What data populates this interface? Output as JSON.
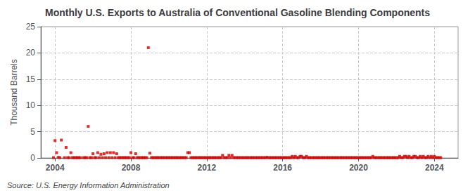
{
  "chart_data": {
    "type": "scatter",
    "title": "Monthly U.S. Exports to Australia of Conventional Gasoline Blending Components",
    "y_label": "Thousand Barrels",
    "annotations": [
      "Source: U.S. Energy Information Administration"
    ],
    "color": "#cc0000",
    "marker": "square",
    "grid": true,
    "xlim": [
      2003.25,
      2025.25
    ],
    "xticks": [
      2004,
      2008,
      2012,
      2016,
      2020,
      2024
    ],
    "ylim": [
      0,
      25
    ],
    "yticks": [
      0,
      5,
      10,
      15,
      20,
      25
    ],
    "x": [
      2003.917,
      2004.0,
      2004.083,
      2004.167,
      2004.25,
      2004.333,
      2004.5,
      2004.583,
      2004.667,
      2004.75,
      2004.833,
      2004.917,
      2005.0,
      2005.083,
      2005.167,
      2005.25,
      2005.333,
      2005.5,
      2005.583,
      2005.667,
      2005.75,
      2005.833,
      2005.917,
      2006.0,
      2006.083,
      2006.167,
      2006.25,
      2006.333,
      2006.417,
      2006.5,
      2006.583,
      2006.667,
      2006.75,
      2006.833,
      2006.917,
      2007.0,
      2007.083,
      2007.167,
      2007.25,
      2007.333,
      2007.417,
      2007.5,
      2007.583,
      2007.667,
      2007.75,
      2007.833,
      2007.917,
      2008.0,
      2008.083,
      2008.167,
      2008.25,
      2008.333,
      2008.417,
      2008.5,
      2008.583,
      2008.667,
      2008.75,
      2008.833,
      2008.917,
      2009.0,
      2009.083,
      2009.167,
      2009.25,
      2009.333,
      2009.417,
      2009.5,
      2009.583,
      2009.667,
      2009.75,
      2009.833,
      2009.917,
      2010.0,
      2010.083,
      2010.167,
      2010.25,
      2010.333,
      2010.417,
      2010.5,
      2010.583,
      2010.667,
      2010.75,
      2010.833,
      2010.917,
      2011.0,
      2011.083,
      2011.167,
      2011.25,
      2011.333,
      2011.417,
      2011.5,
      2011.583,
      2011.667,
      2011.75,
      2011.833,
      2011.917,
      2012.0,
      2012.083,
      2012.167,
      2012.25,
      2012.333,
      2012.417,
      2012.5,
      2012.583,
      2012.667,
      2012.75,
      2012.833,
      2012.917,
      2013.0,
      2013.083,
      2013.167,
      2013.25,
      2013.333,
      2013.417,
      2013.5,
      2013.583,
      2013.667,
      2013.75,
      2013.833,
      2013.917,
      2014.0,
      2014.083,
      2014.167,
      2014.25,
      2014.333,
      2014.417,
      2014.5,
      2014.583,
      2014.667,
      2014.75,
      2014.833,
      2014.917,
      2015.0,
      2015.083,
      2015.167,
      2015.25,
      2015.333,
      2015.417,
      2015.5,
      2015.583,
      2015.667,
      2015.75,
      2015.833,
      2015.917,
      2016.0,
      2016.083,
      2016.167,
      2016.25,
      2016.333,
      2016.417,
      2016.5,
      2016.583,
      2016.667,
      2016.75,
      2016.833,
      2016.917,
      2017.0,
      2017.083,
      2017.167,
      2017.25,
      2017.333,
      2017.417,
      2017.5,
      2017.583,
      2017.667,
      2017.75,
      2017.833,
      2017.917,
      2018.0,
      2018.083,
      2018.167,
      2018.25,
      2018.333,
      2018.417,
      2018.5,
      2018.583,
      2018.667,
      2018.75,
      2018.833,
      2018.917,
      2019.0,
      2019.083,
      2019.167,
      2019.25,
      2019.333,
      2019.417,
      2019.5,
      2019.583,
      2019.667,
      2019.75,
      2019.833,
      2019.917,
      2020.0,
      2020.083,
      2020.167,
      2020.25,
      2020.333,
      2020.417,
      2020.5,
      2020.583,
      2020.667,
      2020.75,
      2020.833,
      2020.917,
      2021.0,
      2021.083,
      2021.167,
      2021.25,
      2021.333,
      2021.417,
      2021.5,
      2021.583,
      2021.667,
      2021.75,
      2021.833,
      2021.917,
      2022.0,
      2022.083,
      2022.167,
      2022.25,
      2022.333,
      2022.417,
      2022.5,
      2022.583,
      2022.667,
      2022.75,
      2022.833,
      2022.917,
      2023.0,
      2023.083,
      2023.167,
      2023.25,
      2023.333,
      2023.417,
      2023.5,
      2023.583,
      2023.667,
      2023.75,
      2023.833,
      2023.917,
      2024.0,
      2024.083,
      2024.167,
      2024.25,
      2024.333
    ],
    "values": [
      0.05,
      3.3,
      1.0,
      0.1,
      0.05,
      3.4,
      0.05,
      2.0,
      0.05,
      0.05,
      1.0,
      0.05,
      0.05,
      0.05,
      0.05,
      0.05,
      0.05,
      0.05,
      0.05,
      0.05,
      6.0,
      0.05,
      0.05,
      0.8,
      0.05,
      0.05,
      1.0,
      0.05,
      0.7,
      0.05,
      0.8,
      0.05,
      1.0,
      0.05,
      1.0,
      0.05,
      1.0,
      0.05,
      0.8,
      0.05,
      0.05,
      0.05,
      0.05,
      0.05,
      0.05,
      0.05,
      0.05,
      1.0,
      0.05,
      0.05,
      0.8,
      0.05,
      0.05,
      0.05,
      0.05,
      0.05,
      0.05,
      0.05,
      21.0,
      0.9,
      0.05,
      0.05,
      0.05,
      0.05,
      0.05,
      0.05,
      0.05,
      0.05,
      0.05,
      0.05,
      0.05,
      0.05,
      0.05,
      0.05,
      0.05,
      0.05,
      0.05,
      0.05,
      0.05,
      0.05,
      0.05,
      0.05,
      0.05,
      1.0,
      1.0,
      0.05,
      0.05,
      0.05,
      0.05,
      0.05,
      0.05,
      0.05,
      0.05,
      0.05,
      0.05,
      0.05,
      0.05,
      0.05,
      0.05,
      0.05,
      0.05,
      0.05,
      0.05,
      0.05,
      0.05,
      0.5,
      0.05,
      0.05,
      0.05,
      0.5,
      0.05,
      0.5,
      0.05,
      0.05,
      0.05,
      0.05,
      0.05,
      0.05,
      0.05,
      0.05,
      0.05,
      0.05,
      0.05,
      0.05,
      0.05,
      0.05,
      0.05,
      0.05,
      0.05,
      0.05,
      0.05,
      0.05,
      0.05,
      0.1,
      0.05,
      0.05,
      0.05,
      0.05,
      0.05,
      0.05,
      0.05,
      0.05,
      0.05,
      0.05,
      0.05,
      0.05,
      0.05,
      0.05,
      0.05,
      0.3,
      0.05,
      0.3,
      0.05,
      0.05,
      0.3,
      0.3,
      0.05,
      0.05,
      0.3,
      0.05,
      0.05,
      0.05,
      0.05,
      0.05,
      0.05,
      0.05,
      0.05,
      0.05,
      0.05,
      0.05,
      0.05,
      0.05,
      0.05,
      0.05,
      0.05,
      0.05,
      0.05,
      0.05,
      0.05,
      0.05,
      0.05,
      0.05,
      0.05,
      0.05,
      0.05,
      0.05,
      0.05,
      0.05,
      0.05,
      0.05,
      0.05,
      0.05,
      0.05,
      0.05,
      0.05,
      0.05,
      0.05,
      0.05,
      0.05,
      0.05,
      0.3,
      0.05,
      0.05,
      0.05,
      0.05,
      0.05,
      0.05,
      0.05,
      0.05,
      0.05,
      0.05,
      0.05,
      0.05,
      0.05,
      0.05,
      0.05,
      0.05,
      0.3,
      0.05,
      0.05,
      0.3,
      0.3,
      0.05,
      0.3,
      0.05,
      0.05,
      0.3,
      0.3,
      0.05,
      0.05,
      0.3,
      0.05,
      0.3,
      0.05,
      0.05,
      0.3,
      0.05,
      0.3,
      0.05,
      0.3,
      0.05,
      0.05,
      0.05,
      0.05
    ]
  }
}
